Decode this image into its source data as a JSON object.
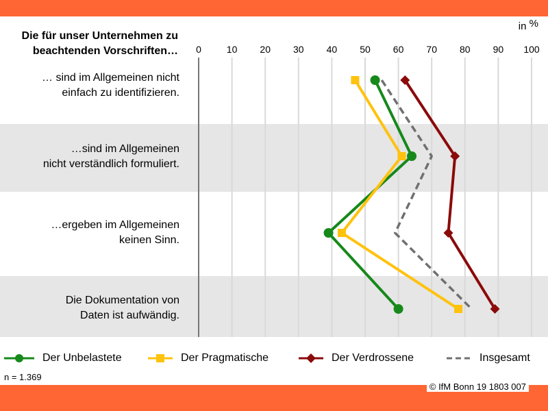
{
  "header": {
    "title": "Die für unser Unternehmen zu beachtenden Vorschriften…",
    "unit_in": "in",
    "unit_pct": "%"
  },
  "footer": {
    "n_note": "n = 1.369",
    "copyright": "© IfM Bonn 19 1803 007"
  },
  "colors": {
    "band": "#FF6633",
    "unbelastete": "#16891A",
    "pragmatische": "#FFC20E",
    "verdrossene": "#8B0A0A",
    "insgesamt": "#707070",
    "stripe": "#E6E6E6",
    "grid": "#D9D9D9"
  },
  "chart_data": {
    "type": "line",
    "orientation": "horizontal-values",
    "title": "Die für unser Unternehmen zu beachtenden Vorschriften…",
    "unit": "in %",
    "xlim": [
      0,
      100
    ],
    "xticks": [
      0,
      10,
      20,
      30,
      40,
      50,
      60,
      70,
      80,
      90,
      100
    ],
    "grid": true,
    "legend_position": "bottom",
    "categories": [
      "… sind im Allgemeinen nicht einfach zu identifizieren.",
      "…sind im Allgemeinen nicht verständlich formuliert.",
      "…ergeben im Allgemeinen keinen Sinn.",
      "Die Dokumentation von Daten ist aufwändig."
    ],
    "category_lines": [
      [
        "… sind im Allgemeinen nicht",
        "einfach zu identifizieren."
      ],
      [
        "…sind im Allgemeinen",
        "nicht verständlich formuliert."
      ],
      [
        "…ergeben im Allgemeinen",
        "keinen Sinn."
      ],
      [
        "Die Dokumentation von",
        "Daten ist aufwändig."
      ]
    ],
    "series": [
      {
        "name": "Der Unbelastete",
        "marker": "circle",
        "style": "solid",
        "values": [
          53,
          64,
          39,
          60
        ]
      },
      {
        "name": "Der Pragmatische",
        "marker": "square",
        "style": "solid",
        "values": [
          47,
          61,
          43,
          78
        ]
      },
      {
        "name": "Der Verdrossene",
        "marker": "diamond",
        "style": "solid",
        "values": [
          62,
          77,
          75,
          89
        ]
      },
      {
        "name": "Insgesamt",
        "marker": "none",
        "style": "dashed",
        "values": [
          55,
          70,
          59,
          82
        ]
      }
    ]
  }
}
